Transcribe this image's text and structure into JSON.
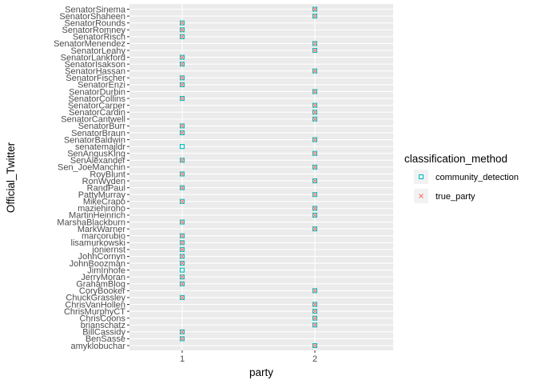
{
  "chart_data": {
    "type": "scatter",
    "xlabel": "party",
    "ylabel": "Official_Twitter",
    "x_categories": [
      "1",
      "2"
    ],
    "y_categories": [
      "amyklobuchar",
      "BenSasse",
      "BillCassidy",
      "brianschatz",
      "ChrisCoons",
      "ChrisMurphyCT",
      "ChrisVanHollen",
      "ChuckGrassley",
      "CoryBooker",
      "GrahamBlog",
      "JerryMoran",
      "JimInhofe",
      "JohnBoozman",
      "JohnCornyn",
      "joniernst",
      "lisamurkowski",
      "marcorubio",
      "MarkWarner",
      "MarshaBlackburn",
      "MartinHeinrich",
      "maziehirono",
      "MikeCrapo",
      "PattyMurray",
      "RandPaul",
      "RonWyden",
      "RoyBlunt",
      "Sen_JoeManchin",
      "SenAlexander",
      "SenAngusKing",
      "senatemajldr",
      "SenatorBaldwin",
      "SenatorBraun",
      "SenatorBurr",
      "SenatorCantwell",
      "SenatorCardin",
      "SenatorCarper",
      "SenatorCollins",
      "SenatorDurbin",
      "SenatorEnzi",
      "SenatorFischer",
      "SenatorHassan",
      "SenatorIsakson",
      "SenatorLankford",
      "SenatorLeahy",
      "SenatorMenendez",
      "SenatorRisch",
      "SenatorRomney",
      "SenatorRounds",
      "SenatorShaheen",
      "SenatorSinema"
    ],
    "legend": {
      "title": "classification_method",
      "position": "right",
      "entries": [
        {
          "label": "community_detection",
          "color": "#00BFC4",
          "shape": "open-square"
        },
        {
          "label": "true_party",
          "color": "#F8766D",
          "shape": "cross"
        }
      ]
    },
    "series": [
      {
        "name": "community_detection",
        "color": "#00BFC4",
        "values": [
          2,
          1,
          1,
          2,
          2,
          2,
          2,
          1,
          2,
          1,
          1,
          1,
          1,
          1,
          1,
          1,
          1,
          2,
          1,
          2,
          2,
          1,
          2,
          1,
          2,
          1,
          2,
          1,
          2,
          1,
          2,
          1,
          1,
          2,
          2,
          2,
          1,
          2,
          1,
          1,
          2,
          1,
          1,
          2,
          2,
          1,
          1,
          1,
          2,
          2
        ]
      },
      {
        "name": "true_party",
        "color": "#F8766D",
        "values": [
          2,
          1,
          1,
          2,
          2,
          2,
          2,
          1,
          2,
          1,
          1,
          null,
          1,
          1,
          1,
          1,
          1,
          2,
          1,
          2,
          2,
          1,
          2,
          1,
          2,
          1,
          2,
          1,
          2,
          null,
          2,
          1,
          1,
          2,
          2,
          2,
          1,
          2,
          1,
          1,
          2,
          1,
          1,
          2,
          2,
          1,
          1,
          1,
          2,
          2
        ]
      }
    ],
    "grid": true
  }
}
